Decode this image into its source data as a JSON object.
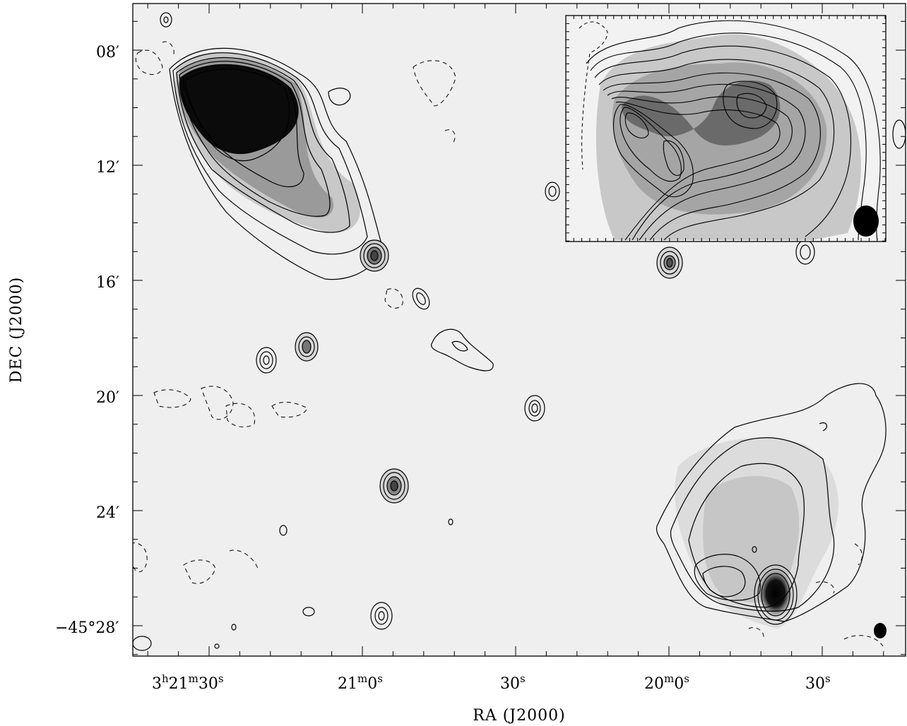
{
  "figure": {
    "xlabel": "RA (J2000)",
    "ylabel": "DEC (J2000)"
  },
  "axes": {
    "x_ticks": [
      {
        "main": "3",
        "s1": "h",
        "m2": "21",
        "s2": "m",
        "m3": "30",
        "s3": "s"
      },
      {
        "main": "21",
        "s1": "m",
        "m2": "0",
        "s2": "s"
      },
      {
        "main": "30",
        "s1": "s"
      },
      {
        "main": "20",
        "s1": "m",
        "m2": "0",
        "s2": "s"
      },
      {
        "main": "30",
        "s1": "s"
      }
    ],
    "y_ticks": [
      {
        "label": "08′"
      },
      {
        "label": "12′"
      },
      {
        "label": "16′"
      },
      {
        "label": "20′"
      },
      {
        "label": "24′"
      },
      {
        "label": "−45°28′"
      }
    ]
  },
  "colors": {
    "background": "#efefef",
    "ink": "#000000",
    "frame": "#000000"
  }
}
